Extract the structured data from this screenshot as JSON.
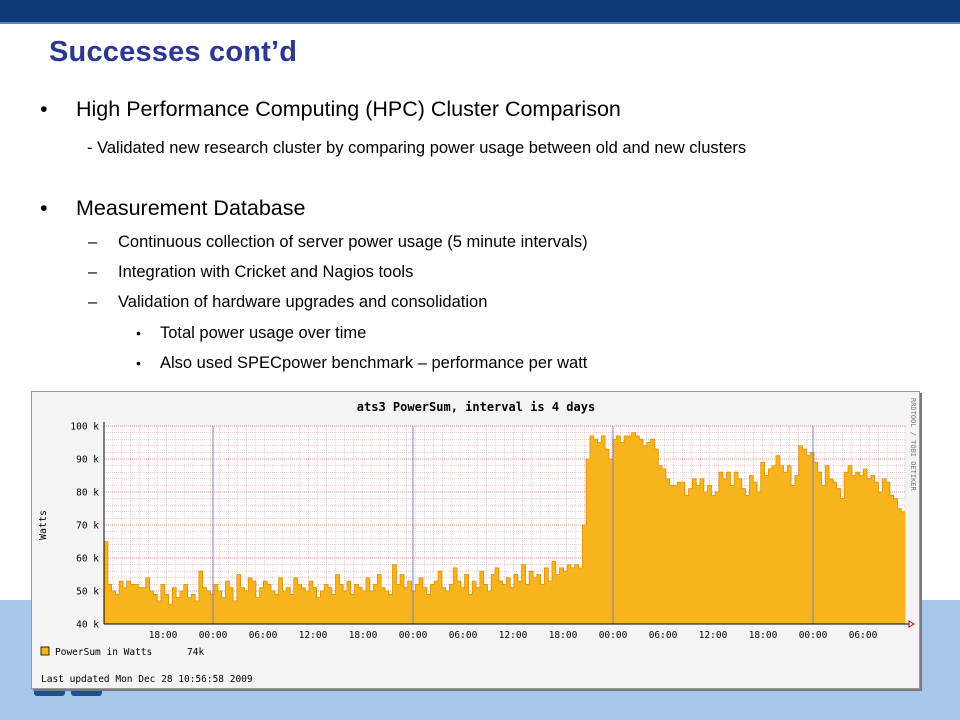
{
  "slide": {
    "title": "Successes cont’d",
    "bullets": [
      {
        "marker": "•",
        "text": "High Performance Computing (HPC) Cluster Comparison"
      },
      {
        "text": "- Validated new research cluster by comparing power usage between old and new clusters"
      },
      {
        "marker": "•",
        "text": "Measurement Database"
      },
      {
        "marker": "–",
        "text": "Continuous collection of server power usage (5 minute intervals)"
      },
      {
        "marker": "–",
        "text": "Integration with Cricket and Nagios tools"
      },
      {
        "marker": "–",
        "text": "Validation of hardware upgrades and consolidation"
      },
      {
        "marker": "•",
        "text": "Total power usage over time"
      },
      {
        "marker": "•",
        "text": "Also used SPECpower benchmark – performance per watt"
      }
    ]
  },
  "colors": {
    "top_band": "#0e3a78",
    "bottom_band": "#a7c8ec",
    "title": "#2a3793",
    "area_fill": "#f8b41c",
    "area_edge": "#e08e00",
    "grid": "#e0a0a0",
    "day_line": "#7c7ccc"
  },
  "chart_data": {
    "type": "area",
    "title": "ats3 PowerSum, interval is 4 days",
    "ylabel": "Watts",
    "xlabel": "",
    "ylim": [
      40000,
      100000
    ],
    "yticks": [
      "100 k",
      "90 k",
      "80 k",
      "70 k",
      "60 k",
      "50 k",
      "40 k"
    ],
    "xticks": [
      "18:00",
      "00:00",
      "06:00",
      "12:00",
      "18:00",
      "00:00",
      "06:00",
      "12:00",
      "18:00",
      "00:00",
      "06:00",
      "12:00",
      "18:00",
      "00:00",
      "06:00"
    ],
    "side_label": "RRDTOOL / TOBI OETIKER",
    "legend": {
      "label": "PowerSum in Watts",
      "value": "74k"
    },
    "last_updated": "Last updated Mon Dec 28 10:56:58 2009",
    "grid": true,
    "series": [
      {
        "name": "PowerSum in Watts",
        "values": [
          65000,
          52000,
          50000,
          49000,
          53000,
          51000,
          53000,
          52000,
          52000,
          51000,
          51000,
          54000,
          50000,
          49000,
          47000,
          52000,
          49000,
          46000,
          51000,
          48000,
          50000,
          52000,
          48000,
          49000,
          47000,
          56000,
          51000,
          50000,
          49000,
          52000,
          50000,
          48000,
          53000,
          51000,
          47000,
          55000,
          51000,
          50000,
          54000,
          53000,
          48000,
          51000,
          53000,
          52000,
          50000,
          49000,
          54000,
          50000,
          51000,
          49000,
          54000,
          52000,
          51000,
          50000,
          53000,
          51000,
          48000,
          50000,
          52000,
          51000,
          49000,
          55000,
          52000,
          50000,
          53000,
          49000,
          52000,
          51000,
          50000,
          54000,
          50000,
          52000,
          55000,
          51000,
          50000,
          49000,
          58000,
          52000,
          55000,
          51000,
          53000,
          50000,
          52000,
          54000,
          51000,
          49000,
          52000,
          53000,
          56000,
          51000,
          50000,
          52000,
          57000,
          53000,
          51000,
          55000,
          49000,
          53000,
          51000,
          56000,
          52000,
          50000,
          55000,
          57000,
          53000,
          52000,
          54000,
          51000,
          55000,
          53000,
          58000,
          52000,
          56000,
          54000,
          55000,
          52000,
          57000,
          53000,
          59000,
          55000,
          57000,
          56000,
          58000,
          57000,
          58000,
          57000,
          70000,
          90000,
          97000,
          96000,
          95000,
          97000,
          93000,
          90000,
          96000,
          97000,
          95000,
          97000,
          97000,
          98000,
          97000,
          96000,
          94000,
          95000,
          96000,
          93000,
          88000,
          87000,
          84000,
          82000,
          82000,
          83000,
          83000,
          79000,
          81000,
          84000,
          82000,
          84000,
          80000,
          82000,
          79000,
          80000,
          86000,
          84000,
          86000,
          82000,
          86000,
          84000,
          81000,
          79000,
          85000,
          83000,
          80000,
          89000,
          85000,
          87000,
          88000,
          91000,
          88000,
          86000,
          88000,
          82000,
          85000,
          94000,
          93000,
          91000,
          92000,
          89000,
          86000,
          82000,
          88000,
          84000,
          83000,
          81000,
          78000,
          86000,
          88000,
          85000,
          86000,
          85000,
          87000,
          84000,
          85000,
          83000,
          80000,
          84000,
          83000,
          79000,
          78000,
          75000,
          74000
        ]
      }
    ]
  }
}
